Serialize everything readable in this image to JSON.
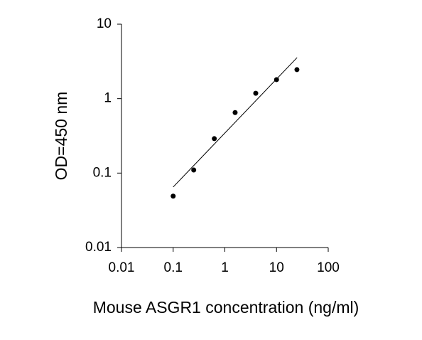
{
  "chart_data": {
    "type": "scatter",
    "xlabel": "Mouse ASGR1 concentration (ng/ml)",
    "ylabel": "OD=450 nm",
    "xscale": "log",
    "yscale": "log",
    "xlim": [
      0.01,
      100
    ],
    "ylim": [
      0.01,
      10
    ],
    "xticks": [
      0.01,
      0.1,
      1,
      10,
      100
    ],
    "yticks": [
      0.01,
      0.1,
      1,
      10
    ],
    "series": [
      {
        "mode": "markers",
        "color": "#000000",
        "x": [
          0.1,
          0.25,
          0.625,
          1.58,
          3.96,
          10,
          24.8
        ],
        "values": [
          0.049,
          0.11,
          0.29,
          0.65,
          1.18,
          1.8,
          2.45
        ]
      },
      {
        "mode": "line",
        "color": "#000000",
        "x": [
          0.1,
          25
        ],
        "values": [
          0.065,
          3.56
        ]
      }
    ]
  }
}
